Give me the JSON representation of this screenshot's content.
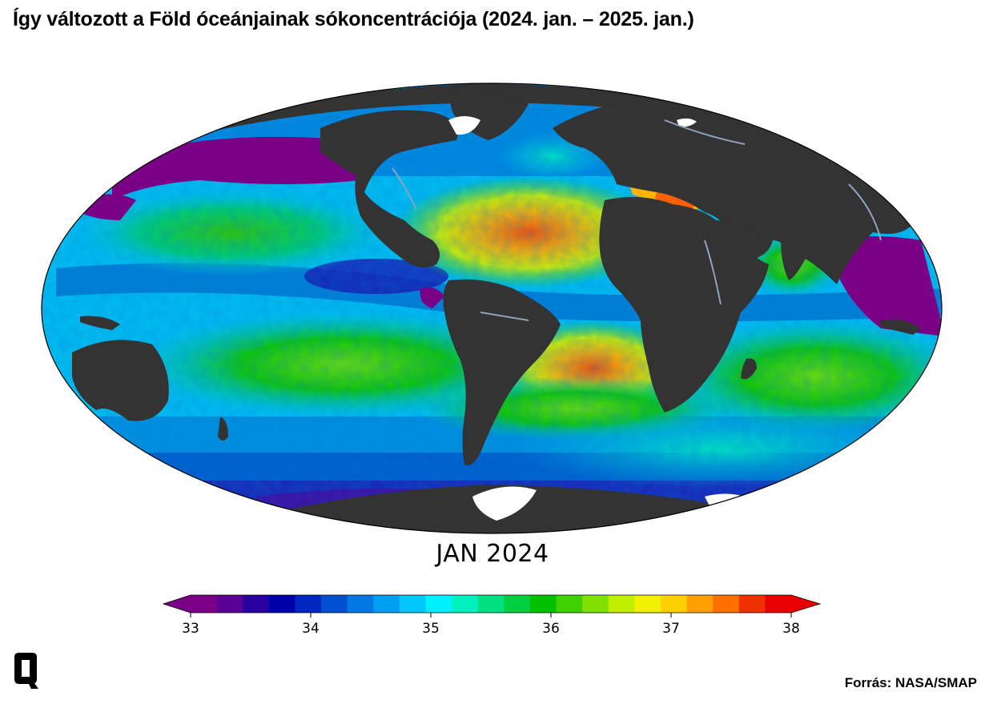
{
  "header": {
    "title": "Így változott a Föld óceánjainak sókoncentrációja (2024. jan. – 2025. jan.)"
  },
  "map": {
    "projection": "Mollweide",
    "frame_label": "JAN 2024",
    "land_color": "#333333",
    "ice_color": "#ffffff",
    "river_color": "#8fa3bf"
  },
  "colorbar": {
    "min": 33,
    "max": 38,
    "ticks": [
      "33",
      "34",
      "35",
      "36",
      "37",
      "38"
    ],
    "extend": "both",
    "colors": [
      "#7a0086",
      "#5a0096",
      "#2800a0",
      "#0000a8",
      "#0028c0",
      "#0050d0",
      "#0078e0",
      "#00a0f0",
      "#00c8fa",
      "#00f0ff",
      "#00f0c0",
      "#00e080",
      "#00d040",
      "#00c000",
      "#40d000",
      "#80e000",
      "#c0f000",
      "#f0f000",
      "#ffd000",
      "#ffa000",
      "#ff7000",
      "#f03000",
      "#e80000"
    ]
  },
  "footer": {
    "source": "Forrás: NASA/SMAP",
    "logo_letter": "Q"
  }
}
